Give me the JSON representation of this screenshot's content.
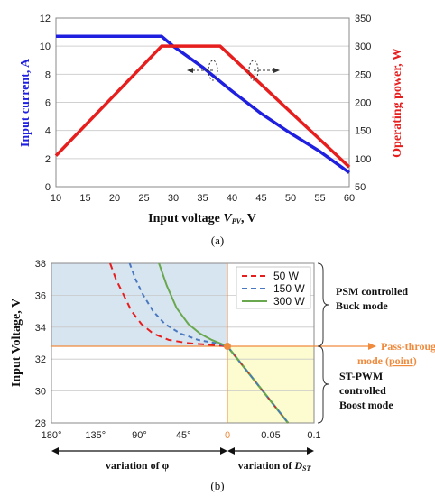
{
  "chart_data": [
    {
      "id": "a",
      "type": "line",
      "caption": "(a)",
      "xlabel": "Input voltage ",
      "xlabel_var": "V",
      "xlabel_sub": "PV",
      "xlabel_unit": ", V",
      "ylabel": "Input current, A",
      "y2label": "Operating power, W",
      "xlim": [
        10,
        60
      ],
      "ylim": [
        0,
        12
      ],
      "y2lim": [
        50,
        350
      ],
      "xticks": [
        10,
        15,
        20,
        25,
        30,
        35,
        40,
        45,
        50,
        55,
        60
      ],
      "yticks": [
        0,
        2,
        4,
        6,
        8,
        10,
        12
      ],
      "y2ticks": [
        50,
        100,
        150,
        200,
        250,
        300,
        350
      ],
      "grid": "horizontal",
      "colors": {
        "current": "#1f1fe0",
        "power": "#e61e1e"
      },
      "series": [
        {
          "axis": "left",
          "color": "#1f1fe0",
          "x": [
            10,
            28,
            30,
            35,
            40,
            45,
            50,
            55,
            60
          ],
          "y": [
            10.7,
            10.7,
            10.0,
            8.5,
            6.8,
            5.2,
            3.8,
            2.5,
            1.0
          ]
        },
        {
          "axis": "right",
          "color": "#e61e1e",
          "x": [
            10,
            28,
            38,
            60
          ],
          "y": [
            105,
            300,
            300,
            85
          ]
        }
      ]
    },
    {
      "id": "b",
      "type": "line",
      "caption": "(b)",
      "ylabel": "Input Voltage, V",
      "ylim": [
        28,
        38
      ],
      "yticks": [
        28,
        30,
        32,
        34,
        36,
        38
      ],
      "x_left_ticks": [
        "180°",
        "135°",
        "90°",
        "45°",
        "0"
      ],
      "x_right_ticks": [
        "0.05",
        "0.1"
      ],
      "x_left_label": "variation of φ",
      "x_right_label_prefix": "variation of ",
      "x_right_label_var": "D",
      "x_right_label_sub": "ST",
      "phi_lim_deg": [
        180,
        0
      ],
      "dst_lim": [
        0,
        0.1
      ],
      "pass_through_voltage": 32.8,
      "legend": [
        {
          "name": "50 W",
          "color": "#e61e1e",
          "dash": "dash"
        },
        {
          "name": "150 W",
          "color": "#4a78c0",
          "dash": "dash"
        },
        {
          "name": "300 W",
          "color": "#6aa84f",
          "dash": "solid"
        }
      ],
      "series": [
        {
          "name": "50 W",
          "phi_deg": [
            120,
            114,
            106,
            98,
            88,
            76,
            60,
            40,
            20,
            0
          ],
          "v": [
            38,
            37.0,
            36.0,
            35.0,
            34.2,
            33.6,
            33.2,
            33.0,
            32.9,
            32.8
          ]
        },
        {
          "name": "150 W",
          "phi_deg": [
            100,
            94,
            86,
            76,
            64,
            48,
            30,
            12,
            0
          ],
          "v": [
            38,
            37.0,
            36.0,
            35.0,
            34.2,
            33.6,
            33.2,
            33.0,
            32.8
          ]
        },
        {
          "name": "300 W",
          "phi_deg": [
            70,
            62,
            52,
            40,
            28,
            16,
            6,
            0
          ],
          "v": [
            38,
            36.6,
            35.2,
            34.2,
            33.6,
            33.2,
            32.95,
            32.8
          ]
        },
        {
          "name": "Boost",
          "dst": [
            0,
            0.07
          ],
          "v": [
            32.8,
            28
          ]
        }
      ],
      "regions": {
        "psm_fill": "#d7e5f1",
        "boost_fill": "#fdfcd0",
        "pass_color": "#f08a3c"
      },
      "annotations": {
        "psm": [
          "PSM controlled",
          "Buck mode"
        ],
        "pass": [
          "Pass-through",
          "mode ("
        ],
        "pass_point": "point",
        "pass_close": ")",
        "boost": [
          "ST-PWM",
          "controlled",
          "Boost mode"
        ]
      }
    }
  ]
}
